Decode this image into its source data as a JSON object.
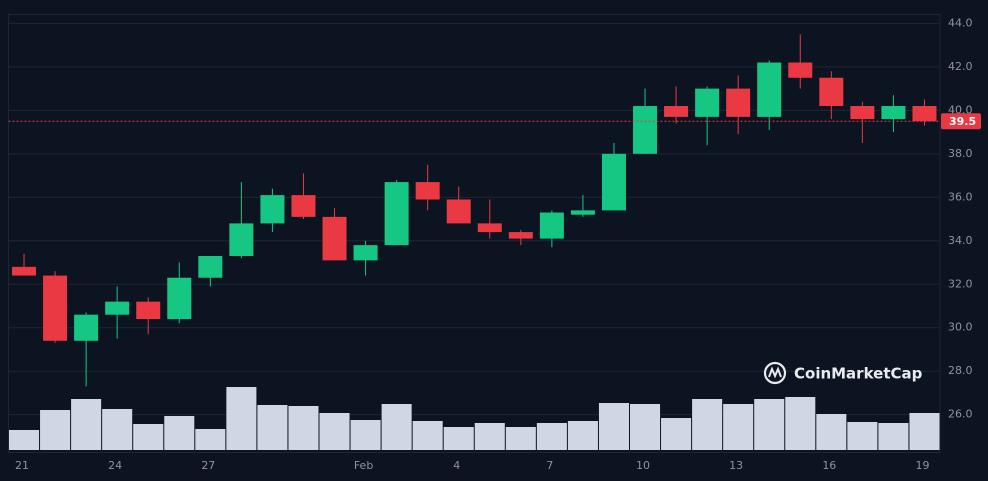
{
  "chart_data": {
    "type": "candlestick",
    "watermark": "CoinMarketCap",
    "categories": [
      "21",
      null,
      null,
      "24",
      null,
      null,
      "27",
      null,
      null,
      null,
      null,
      "Feb",
      null,
      null,
      "4",
      null,
      null,
      "7",
      null,
      null,
      "10",
      null,
      null,
      "13",
      null,
      null,
      "16",
      null,
      null,
      "19"
    ],
    "open": [
      32.8,
      32.4,
      29.4,
      30.6,
      31.2,
      30.4,
      32.3,
      33.3,
      34.8,
      36.1,
      35.1,
      33.1,
      33.8,
      36.7,
      35.9,
      34.8,
      34.4,
      34.1,
      35.2,
      35.4,
      38.0,
      40.2,
      39.7,
      41.0,
      39.7,
      42.2,
      41.5,
      40.2,
      39.6,
      40.2
    ],
    "high": [
      33.4,
      32.6,
      30.7,
      31.9,
      31.4,
      33.0,
      33.3,
      36.7,
      36.4,
      37.1,
      35.5,
      34.0,
      36.8,
      37.5,
      36.5,
      35.9,
      34.5,
      35.4,
      36.1,
      38.5,
      41.0,
      41.1,
      41.1,
      41.6,
      42.3,
      43.5,
      41.8,
      40.4,
      40.7,
      40.5
    ],
    "low": [
      32.4,
      29.3,
      27.3,
      29.5,
      29.7,
      30.2,
      31.9,
      33.2,
      34.4,
      35.0,
      33.1,
      32.4,
      33.8,
      35.4,
      34.8,
      34.1,
      33.8,
      33.7,
      35.1,
      35.4,
      38.0,
      39.4,
      38.4,
      38.9,
      39.1,
      41.0,
      39.6,
      38.5,
      39.0,
      39.3
    ],
    "close": [
      32.4,
      29.4,
      30.6,
      31.2,
      30.4,
      32.3,
      33.3,
      34.8,
      36.1,
      35.1,
      33.1,
      33.8,
      36.7,
      35.9,
      34.8,
      34.4,
      34.1,
      35.3,
      35.4,
      38.0,
      40.2,
      39.7,
      41.0,
      39.7,
      42.2,
      41.5,
      40.2,
      39.6,
      40.2,
      39.5
    ],
    "volume": [
      20,
      40,
      51,
      41,
      26,
      34,
      21,
      63,
      45,
      44,
      37,
      30,
      46,
      29,
      23,
      27,
      23,
      27,
      29,
      47,
      46,
      32,
      51,
      46,
      51,
      53,
      36,
      28,
      27,
      37
    ],
    "volume_lim": [
      0,
      100
    ],
    "up_color": "#16c784",
    "down_color": "#ea3943",
    "volume_color": "#cfd6e4",
    "last_price": 39.5,
    "ylim": [
      24.26,
      44.41
    ],
    "yticks": [
      {
        "value": 26,
        "label": "26.0"
      },
      {
        "value": 28,
        "label": "28.0"
      },
      {
        "value": 30,
        "label": "30.0"
      },
      {
        "value": 32,
        "label": "32.0"
      },
      {
        "value": 34,
        "label": "34.0"
      },
      {
        "value": 36,
        "label": "36.0"
      },
      {
        "value": 38,
        "label": "38.0"
      },
      {
        "value": 40,
        "label": "40.0"
      },
      {
        "value": 42,
        "label": "42.0"
      },
      {
        "value": 44,
        "label": "44.0"
      }
    ],
    "grid": true
  }
}
